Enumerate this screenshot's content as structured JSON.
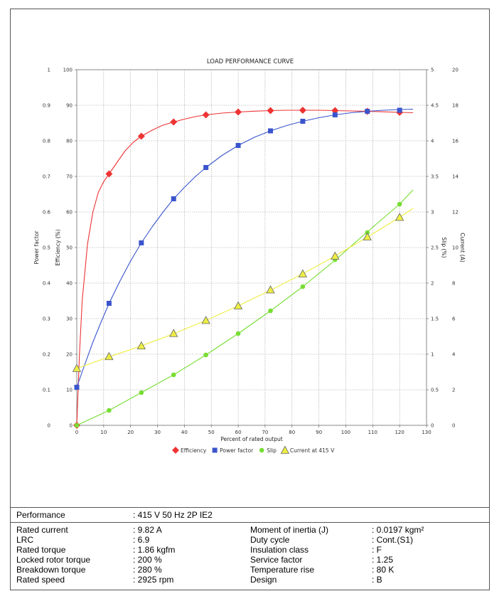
{
  "chart_data": {
    "type": "line",
    "title": "LOAD PERFORMANCE CURVE",
    "xlabel": "Percent of rated output",
    "xlim": [
      0,
      130
    ],
    "x_ticks": [
      "0",
      "10",
      "20",
      "30",
      "40",
      "50",
      "60",
      "70",
      "80",
      "90",
      "100",
      "110",
      "120",
      "130"
    ],
    "axes": {
      "power_factor": {
        "label": "Power factor",
        "range": [
          0,
          1
        ],
        "ticks": [
          "0",
          "0.1",
          "0.2",
          "0.3",
          "0.4",
          "0.5",
          "0.6",
          "0.7",
          "0.8",
          "0.9",
          "1"
        ]
      },
      "efficiency": {
        "label": "Efficiency (%)",
        "range": [
          0,
          100
        ],
        "ticks": [
          "0",
          "10",
          "20",
          "30",
          "40",
          "50",
          "60",
          "70",
          "80",
          "90",
          "100"
        ]
      },
      "slip": {
        "label": "Slip (%)",
        "range": [
          0,
          5
        ],
        "ticks": [
          "0",
          "0.5",
          "1",
          "1.5",
          "2",
          "2.5",
          "3",
          "3.5",
          "4",
          "4.5",
          "5"
        ]
      },
      "current": {
        "label": "Current (A)",
        "range": [
          0,
          20
        ],
        "ticks": [
          "0",
          "2",
          "4",
          "6",
          "8",
          "10",
          "12",
          "14",
          "16",
          "18",
          "20"
        ]
      }
    },
    "grid": true,
    "legend_position": "bottom",
    "series": [
      {
        "name": "Efficiency",
        "axis": "efficiency",
        "color": "#ee3333",
        "marker": "diamond",
        "x": [
          0,
          12,
          24,
          36,
          48,
          60,
          72,
          84,
          96,
          108,
          120
        ],
        "values": [
          0,
          70.7,
          81.3,
          85.3,
          87.3,
          88.1,
          88.5,
          88.6,
          88.5,
          88.3,
          88.0
        ],
        "curve_x": [
          0,
          1,
          2,
          4,
          6,
          8,
          10,
          12,
          15,
          18,
          21,
          24,
          28,
          32,
          36,
          40,
          44,
          48,
          54,
          60,
          66,
          72,
          78,
          84,
          90,
          96,
          102,
          108,
          114,
          120,
          125
        ],
        "curve": [
          0,
          20,
          35,
          51,
          60,
          65.5,
          68.5,
          70.7,
          74.0,
          77.2,
          79.6,
          81.3,
          83.0,
          84.4,
          85.3,
          86.1,
          86.8,
          87.3,
          87.8,
          88.1,
          88.35,
          88.5,
          88.6,
          88.6,
          88.6,
          88.5,
          88.4,
          88.3,
          88.15,
          88.0,
          87.9
        ]
      },
      {
        "name": "Power factor",
        "axis": "power_factor",
        "color": "#3a55cc",
        "marker": "square",
        "x": [
          0,
          12,
          24,
          36,
          48,
          60,
          72,
          84,
          96,
          108,
          120
        ],
        "values": [
          0.107,
          0.343,
          0.513,
          0.637,
          0.725,
          0.787,
          0.828,
          0.855,
          0.873,
          0.883,
          0.886
        ],
        "curve_x": [
          0,
          3,
          6,
          9,
          12,
          16,
          20,
          24,
          28,
          32,
          36,
          40,
          44,
          48,
          54,
          60,
          66,
          72,
          78,
          84,
          90,
          96,
          102,
          108,
          114,
          120,
          125
        ],
        "curve": [
          0.107,
          0.172,
          0.234,
          0.29,
          0.343,
          0.405,
          0.462,
          0.513,
          0.558,
          0.599,
          0.637,
          0.669,
          0.699,
          0.725,
          0.759,
          0.787,
          0.81,
          0.828,
          0.843,
          0.855,
          0.865,
          0.873,
          0.879,
          0.883,
          0.886,
          0.888,
          0.889
        ]
      },
      {
        "name": "Slip",
        "axis": "slip",
        "color": "#77dd33",
        "marker": "circle",
        "x": [
          0,
          12,
          24,
          36,
          48,
          60,
          72,
          84,
          96,
          108,
          120
        ],
        "values": [
          0,
          0.21,
          0.46,
          0.71,
          0.99,
          1.29,
          1.61,
          1.95,
          2.33,
          2.71,
          3.11
        ],
        "curve_x": [
          0,
          12,
          24,
          36,
          48,
          60,
          72,
          84,
          96,
          108,
          120,
          125
        ],
        "curve": [
          0,
          0.21,
          0.46,
          0.71,
          0.99,
          1.29,
          1.61,
          1.95,
          2.32,
          2.72,
          3.11,
          3.31
        ]
      },
      {
        "name": "Current at 415 V",
        "axis": "current",
        "color": "#eeee44",
        "marker": "triangle",
        "x": [
          0,
          12,
          24,
          36,
          48,
          60,
          72,
          84,
          96,
          108,
          120
        ],
        "values": [
          3.2,
          3.87,
          4.47,
          5.17,
          5.9,
          6.72,
          7.62,
          8.52,
          9.52,
          10.6,
          11.7
        ],
        "curve_x": [
          0,
          12,
          24,
          36,
          48,
          60,
          72,
          84,
          96,
          108,
          120,
          125
        ],
        "curve": [
          3.2,
          3.85,
          4.47,
          5.15,
          5.9,
          6.72,
          7.6,
          8.52,
          9.52,
          10.58,
          11.7,
          12.2
        ]
      }
    ]
  },
  "specs": {
    "performance": {
      "label": "Performance",
      "value": ": 415 V 50 Hz 2P IE2"
    },
    "left": [
      {
        "label": "Rated current",
        "value": ": 9.82 A"
      },
      {
        "label": "LRC",
        "value": ": 6.9"
      },
      {
        "label": "Rated torque",
        "value": ": 1.86 kgfm"
      },
      {
        "label": "Locked rotor torque",
        "value": ": 200 %"
      },
      {
        "label": "Breakdown torque",
        "value": ": 280 %"
      },
      {
        "label": "Rated speed",
        "value": ": 2925 rpm"
      }
    ],
    "right": [
      {
        "label": "Moment of inertia (J)",
        "value": ": 0.0197 kgm²"
      },
      {
        "label": "Duty cycle",
        "value": ": Cont.(S1)"
      },
      {
        "label": "Insulation class",
        "value": ": F"
      },
      {
        "label": "Service factor",
        "value": ": 1.25"
      },
      {
        "label": "Temperature rise",
        "value": ": 80 K"
      },
      {
        "label": "Design",
        "value": ": B"
      }
    ]
  }
}
